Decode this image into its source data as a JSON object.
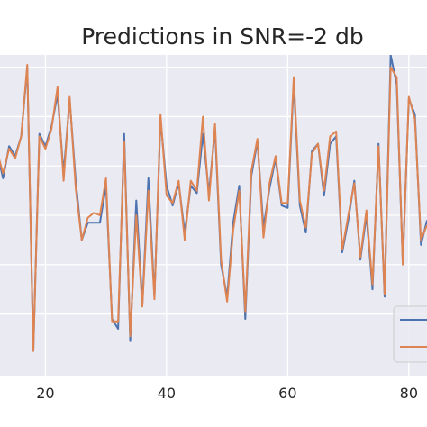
{
  "chart_data": {
    "type": "line",
    "title": "Predictions in SNR=-2 db",
    "xlabel": "",
    "ylabel": "",
    "xlim": [
      12.5,
      83
    ],
    "ylim": [
      -0.25,
      1.05
    ],
    "xticks": [
      20,
      40,
      60,
      80
    ],
    "yticks": [
      0.0,
      0.2,
      0.4,
      0.6,
      0.8,
      1.0
    ],
    "grid": true,
    "legend_position": "lower-right",
    "colors": {
      "background": "#EAEAF2",
      "grid": "#FFFFFF",
      "series_1": "#4C72B0",
      "series_2": "#DD8452"
    },
    "x": [
      12,
      13,
      14,
      15,
      16,
      17,
      18,
      19,
      20,
      21,
      22,
      23,
      24,
      25,
      26,
      27,
      28,
      29,
      30,
      31,
      32,
      33,
      34,
      35,
      36,
      37,
      38,
      39,
      40,
      41,
      42,
      43,
      44,
      45,
      46,
      47,
      48,
      49,
      50,
      51,
      52,
      53,
      54,
      55,
      56,
      57,
      58,
      59,
      60,
      61,
      62,
      63,
      64,
      65,
      66,
      67,
      68,
      69,
      70,
      71,
      72,
      73,
      74,
      75,
      76,
      77,
      78,
      79,
      80,
      81,
      82,
      83
    ],
    "series": [
      {
        "values": [
          0.66,
          0.55,
          0.68,
          0.64,
          0.72,
          1.0,
          -0.15,
          0.73,
          0.68,
          0.76,
          0.89,
          0.57,
          0.87,
          0.54,
          0.3,
          0.37,
          0.37,
          0.37,
          0.52,
          -0.02,
          -0.06,
          0.73,
          -0.11,
          0.46,
          0.04,
          0.55,
          0.07,
          0.79,
          0.52,
          0.44,
          0.53,
          0.33,
          0.52,
          0.49,
          0.73,
          0.49,
          0.75,
          0.2,
          0.07,
          0.37,
          0.52,
          -0.02,
          0.56,
          0.7,
          0.35,
          0.51,
          0.63,
          0.44,
          0.43,
          0.94,
          0.44,
          0.33,
          0.66,
          0.69,
          0.48,
          0.69,
          0.72,
          0.25,
          0.38,
          0.54,
          0.22,
          0.4,
          0.1,
          0.69,
          0.07,
          1.05,
          0.93,
          0.21,
          0.87,
          0.81,
          0.28,
          0.38
        ]
      },
      {
        "values": [
          0.66,
          0.57,
          0.67,
          0.63,
          0.72,
          1.01,
          -0.15,
          0.72,
          0.67,
          0.75,
          0.92,
          0.54,
          0.88,
          0.51,
          0.3,
          0.39,
          0.41,
          0.4,
          0.55,
          -0.03,
          -0.03,
          0.7,
          -0.09,
          0.4,
          0.03,
          0.5,
          0.06,
          0.81,
          0.48,
          0.45,
          0.54,
          0.3,
          0.54,
          0.5,
          0.8,
          0.46,
          0.77,
          0.22,
          0.05,
          0.34,
          0.5,
          0.01,
          0.58,
          0.71,
          0.31,
          0.53,
          0.64,
          0.45,
          0.45,
          0.96,
          0.46,
          0.35,
          0.65,
          0.69,
          0.5,
          0.72,
          0.74,
          0.26,
          0.4,
          0.53,
          0.23,
          0.42,
          0.12,
          0.68,
          0.08,
          1.0,
          0.96,
          0.2,
          0.88,
          0.79,
          0.3,
          0.36
        ]
      }
    ]
  }
}
